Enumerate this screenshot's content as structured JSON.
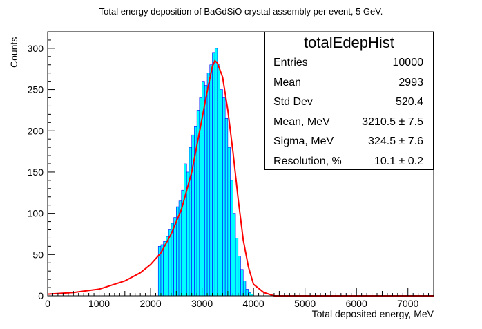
{
  "chart_data": {
    "type": "bar",
    "title": "Total energy deposition of BaGdSiO crystal assembly per event, 5 GeV.",
    "xlabel": "Total deposited energy, MeV",
    "ylabel": "Counts",
    "xlim": [
      0,
      7500
    ],
    "ylim": [
      0,
      320
    ],
    "x_ticks": [
      0,
      1000,
      2000,
      3000,
      4000,
      5000,
      6000,
      7000
    ],
    "y_ticks": [
      0,
      50,
      100,
      150,
      200,
      250,
      300
    ],
    "grid": false,
    "bin_width": 50,
    "histogram": {
      "name": "totalEdepHist",
      "bin_centers": [
        2175,
        2225,
        2275,
        2325,
        2375,
        2425,
        2475,
        2525,
        2575,
        2625,
        2675,
        2725,
        2775,
        2825,
        2875,
        2925,
        2975,
        3025,
        3075,
        3125,
        3175,
        3225,
        3275,
        3325,
        3375,
        3425,
        3475,
        3525,
        3575,
        3625,
        3675,
        3725,
        3775,
        3825,
        3875,
        3925,
        3975
      ],
      "counts": [
        60,
        62,
        66,
        72,
        80,
        88,
        95,
        108,
        115,
        128,
        160,
        150,
        180,
        195,
        205,
        225,
        240,
        260,
        255,
        270,
        280,
        295,
        300,
        280,
        250,
        240,
        215,
        180,
        140,
        100,
        70,
        48,
        32,
        18,
        8,
        4,
        2
      ],
      "color": "#00ffff",
      "outline_color": "#0000ff"
    },
    "fit": {
      "color": "#ff0000",
      "x": [
        0,
        500,
        1000,
        1500,
        1800,
        2000,
        2200,
        2400,
        2600,
        2800,
        3000,
        3100,
        3200,
        3250,
        3300,
        3400,
        3500,
        3600,
        3700,
        3800,
        3900,
        4000,
        4200,
        4400,
        7500
      ],
      "y": [
        2,
        4,
        8,
        18,
        28,
        38,
        52,
        75,
        105,
        150,
        215,
        248,
        278,
        285,
        282,
        265,
        225,
        175,
        118,
        68,
        35,
        14,
        4,
        0,
        0
      ]
    },
    "legend_position": "top-right"
  },
  "stats": {
    "title": "totalEdepHist",
    "rows": [
      {
        "label": "Entries",
        "value": "10000"
      },
      {
        "label": "Mean",
        "value": "2993"
      },
      {
        "label": "Std Dev",
        "value": "520.4"
      },
      {
        "label": "Mean, MeV",
        "value": "3210.5 ± 7.5"
      },
      {
        "label": "Sigma, MeV",
        "value": "324.5 ± 7.6"
      },
      {
        "label": "Resolution, %",
        "value": "10.1 ± 0.2"
      }
    ]
  },
  "colors": {
    "fill": "#00ffff",
    "outline": "#0000ff",
    "fit": "#ff0000",
    "axis": "#000000"
  }
}
